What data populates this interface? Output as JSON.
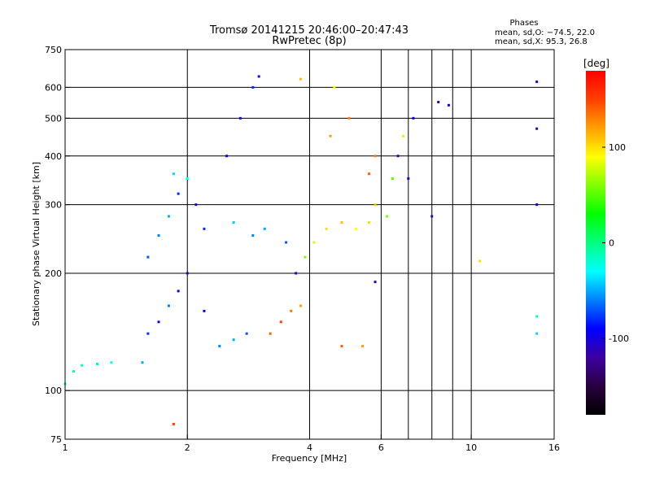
{
  "chart_data": {
    "type": "scatter",
    "title": "Tromsø 20141215 20:46:00–20:47:43",
    "subtitle": "RwPretec (8p)",
    "xlabel": "Frequency [MHz]",
    "ylabel": "Stationary phase Virtual Height [km]",
    "x_scale": "log",
    "y_scale": "log",
    "xlim": [
      1,
      16
    ],
    "ylim": [
      75,
      750
    ],
    "x_ticks": [
      1,
      2,
      4,
      6,
      10,
      16
    ],
    "x_tick_labels": [
      "1",
      "2",
      "4",
      "6",
      "10",
      "16"
    ],
    "x_grid": [
      2,
      4,
      6,
      7,
      8,
      9,
      10
    ],
    "y_ticks": [
      75,
      100,
      200,
      300,
      400,
      500,
      600,
      750
    ],
    "y_tick_labels": [
      "75",
      "100",
      "200",
      "300",
      "400",
      "500",
      "600",
      "750"
    ],
    "y_grid": [
      100,
      200,
      300,
      400,
      500,
      600
    ],
    "grid": true,
    "phase_stats": {
      "heading": "Phases",
      "line1": "mean, sd,O: −74.5, 22.0",
      "line2": "mean, sd,X:  95.3, 26.8"
    },
    "colorbar": {
      "label": "[deg]",
      "range": [
        -180,
        180
      ],
      "ticks": [
        100,
        0,
        -100
      ],
      "tick_labels": [
        "100",
        "0",
        "-100"
      ],
      "colors": [
        "#000000",
        "#2a0040",
        "#3c00a0",
        "#0000ff",
        "#0080ff",
        "#00ffff",
        "#00ff80",
        "#00ff00",
        "#80ff00",
        "#ffff00",
        "#ffa000",
        "#ff4000",
        "#ff0000"
      ]
    },
    "series": [
      {
        "values": [
          {
            "x": 1.0,
            "y": 104,
            "p": -20
          },
          {
            "x": 1.05,
            "y": 112,
            "p": -10
          },
          {
            "x": 1.1,
            "y": 116,
            "p": -15
          },
          {
            "x": 1.2,
            "y": 117,
            "p": -10
          },
          {
            "x": 1.3,
            "y": 118,
            "p": -20
          },
          {
            "x": 1.55,
            "y": 118,
            "p": -50
          },
          {
            "x": 1.6,
            "y": 140,
            "p": -80
          },
          {
            "x": 1.7,
            "y": 150,
            "p": -100
          },
          {
            "x": 1.8,
            "y": 165,
            "p": -60
          },
          {
            "x": 1.9,
            "y": 180,
            "p": -90
          },
          {
            "x": 1.6,
            "y": 220,
            "p": -70
          },
          {
            "x": 1.7,
            "y": 250,
            "p": -60
          },
          {
            "x": 1.8,
            "y": 280,
            "p": -50
          },
          {
            "x": 1.9,
            "y": 320,
            "p": -80
          },
          {
            "x": 1.85,
            "y": 360,
            "p": -40
          },
          {
            "x": 2.0,
            "y": 350,
            "p": -30
          },
          {
            "x": 2.1,
            "y": 300,
            "p": -100
          },
          {
            "x": 2.2,
            "y": 260,
            "p": -80
          },
          {
            "x": 2.0,
            "y": 200,
            "p": -110
          },
          {
            "x": 2.2,
            "y": 160,
            "p": -90
          },
          {
            "x": 2.4,
            "y": 130,
            "p": -60
          },
          {
            "x": 2.6,
            "y": 135,
            "p": -50
          },
          {
            "x": 2.8,
            "y": 140,
            "p": -70
          },
          {
            "x": 2.5,
            "y": 400,
            "p": -90
          },
          {
            "x": 2.7,
            "y": 500,
            "p": -100
          },
          {
            "x": 2.9,
            "y": 600,
            "p": -80
          },
          {
            "x": 3.0,
            "y": 640,
            "p": -110
          },
          {
            "x": 2.6,
            "y": 270,
            "p": -40
          },
          {
            "x": 2.9,
            "y": 250,
            "p": -60
          },
          {
            "x": 3.1,
            "y": 260,
            "p": -50
          },
          {
            "x": 3.2,
            "y": 140,
            "p": 140
          },
          {
            "x": 3.4,
            "y": 150,
            "p": 150
          },
          {
            "x": 3.6,
            "y": 160,
            "p": 130
          },
          {
            "x": 3.8,
            "y": 165,
            "p": 120
          },
          {
            "x": 3.5,
            "y": 240,
            "p": -70
          },
          {
            "x": 3.7,
            "y": 200,
            "p": -110
          },
          {
            "x": 3.9,
            "y": 220,
            "p": 60
          },
          {
            "x": 4.1,
            "y": 240,
            "p": 80
          },
          {
            "x": 4.4,
            "y": 260,
            "p": 100
          },
          {
            "x": 4.8,
            "y": 270,
            "p": 110
          },
          {
            "x": 5.2,
            "y": 260,
            "p": 90
          },
          {
            "x": 5.6,
            "y": 270,
            "p": 100
          },
          {
            "x": 5.8,
            "y": 300,
            "p": 110
          },
          {
            "x": 5.6,
            "y": 360,
            "p": 140
          },
          {
            "x": 5.8,
            "y": 400,
            "p": 130
          },
          {
            "x": 4.5,
            "y": 450,
            "p": 120
          },
          {
            "x": 5.0,
            "y": 500,
            "p": 130
          },
          {
            "x": 4.6,
            "y": 600,
            "p": 90
          },
          {
            "x": 3.8,
            "y": 630,
            "p": 110
          },
          {
            "x": 4.8,
            "y": 130,
            "p": 140
          },
          {
            "x": 5.4,
            "y": 130,
            "p": 120
          },
          {
            "x": 5.8,
            "y": 190,
            "p": -110
          },
          {
            "x": 6.2,
            "y": 280,
            "p": 60
          },
          {
            "x": 6.4,
            "y": 350,
            "p": 50
          },
          {
            "x": 6.6,
            "y": 400,
            "p": -120
          },
          {
            "x": 7.0,
            "y": 350,
            "p": -110
          },
          {
            "x": 6.8,
            "y": 450,
            "p": 80
          },
          {
            "x": 7.2,
            "y": 500,
            "p": -100
          },
          {
            "x": 8.0,
            "y": 280,
            "p": -110
          },
          {
            "x": 8.3,
            "y": 550,
            "p": -120
          },
          {
            "x": 8.8,
            "y": 540,
            "p": -100
          },
          {
            "x": 10.5,
            "y": 215,
            "p": 100
          },
          {
            "x": 14.5,
            "y": 620,
            "p": -110
          },
          {
            "x": 14.5,
            "y": 470,
            "p": -120
          },
          {
            "x": 14.5,
            "y": 300,
            "p": -100
          },
          {
            "x": 14.5,
            "y": 155,
            "p": -20
          },
          {
            "x": 14.5,
            "y": 140,
            "p": -40
          },
          {
            "x": 1.85,
            "y": 82,
            "p": 150
          }
        ]
      }
    ]
  }
}
